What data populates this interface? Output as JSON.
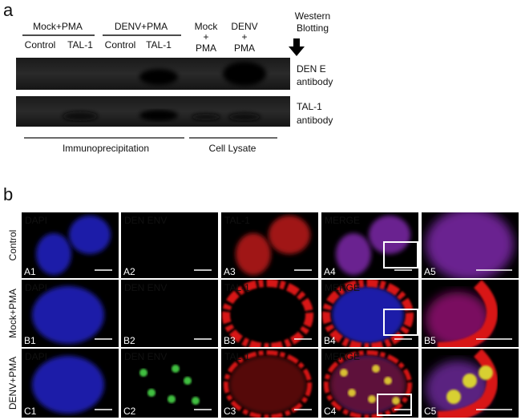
{
  "panel_a": {
    "label": "a",
    "groups": [
      "Mock+PMA",
      "DENV+PMA"
    ],
    "lanes": [
      "Control",
      "TAL-1",
      "Control",
      "TAL-1"
    ],
    "lysate_lanes": [
      [
        "Mock",
        "+",
        "PMA"
      ],
      [
        "DENV",
        "+",
        "PMA"
      ]
    ],
    "western_blotting": [
      "Western",
      "Blotting"
    ],
    "antibodies": [
      [
        "DEN E",
        "antibody"
      ],
      [
        "TAL-1",
        "antibody"
      ]
    ],
    "sections": [
      "Immunoprecipitation",
      "Cell Lysate"
    ]
  },
  "panel_b": {
    "label": "b",
    "rows": [
      "Control",
      "Mock+PMA",
      "DENV+PMA"
    ],
    "channels": [
      "DAPI",
      "DEN ENV",
      "TAL-1",
      "MERGE"
    ],
    "panel_ids": [
      [
        "A1",
        "A2",
        "A3",
        "A4",
        "A5"
      ],
      [
        "B1",
        "B2",
        "B3",
        "B4",
        "B5"
      ],
      [
        "C1",
        "C2",
        "C3",
        "C4",
        "C5"
      ]
    ]
  }
}
